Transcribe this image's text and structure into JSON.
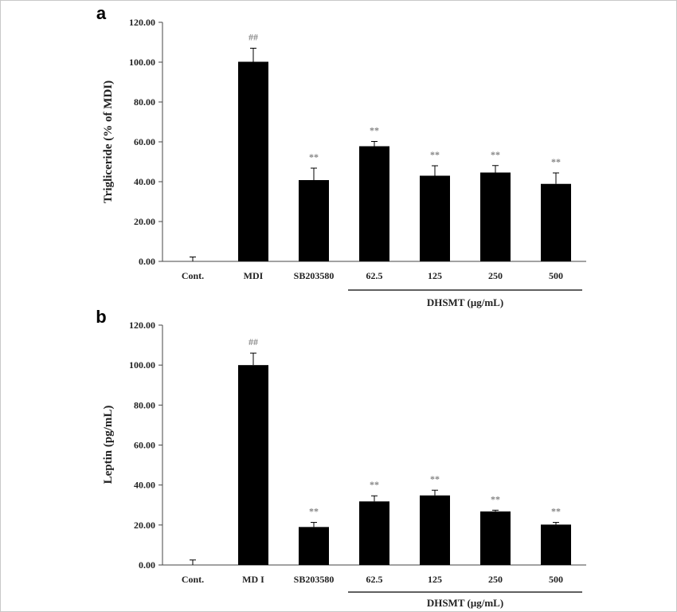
{
  "chart_data": [
    {
      "type": "bar",
      "panel_label": "a",
      "categories": [
        "Cont.",
        "MDI",
        "SB203580",
        "62.5",
        "125",
        "250",
        "500"
      ],
      "values": [
        0,
        100.2,
        40.8,
        57.8,
        43.0,
        44.6,
        38.9
      ],
      "errors": [
        2.2,
        6.8,
        6.0,
        2.4,
        5.0,
        3.5,
        5.5
      ],
      "annotations": [
        "",
        "##",
        "**",
        "**",
        "**",
        "**",
        "**"
      ],
      "ylabel": "Trigliceride (% of MDI)",
      "yticks": [
        "0.00",
        "20.00",
        "40.00",
        "60.00",
        "80.00",
        "100.00",
        "120.00"
      ],
      "ylim": [
        0,
        120
      ],
      "group_label": "DHSMT (μg/mL)",
      "group_span": [
        "62.5",
        "500"
      ],
      "color": "#000000"
    },
    {
      "type": "bar",
      "panel_label": "b",
      "categories": [
        "Cont.",
        "MD I",
        "SB203580",
        "62.5",
        "125",
        "250",
        "500"
      ],
      "values": [
        0,
        100.0,
        19.0,
        31.8,
        34.8,
        26.8,
        20.2
      ],
      "errors": [
        2.5,
        6.0,
        2.3,
        2.8,
        2.6,
        0.6,
        1.1
      ],
      "annotations": [
        "",
        "##",
        "**",
        "**",
        "**",
        "**",
        "**"
      ],
      "ylabel": "Leptin (pg/mL)",
      "yticks": [
        "0.00",
        "20.00",
        "40.00",
        "60.00",
        "80.00",
        "100.00",
        "120.00"
      ],
      "ylim": [
        0,
        120
      ],
      "group_label": "DHSMT (μg/mL)",
      "group_span": [
        "62.5",
        "500"
      ],
      "color": "#000000"
    }
  ]
}
